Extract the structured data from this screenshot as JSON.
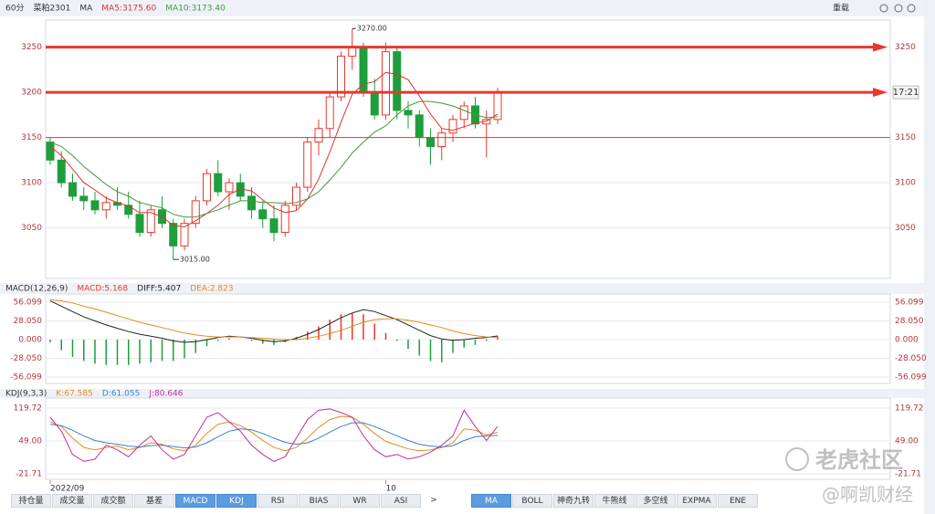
{
  "header": {
    "reload": "重载"
  },
  "chart_data": [
    {
      "type": "candlestick",
      "period": "60分",
      "symbol": "菜粕2301",
      "indicator": "MA",
      "categories": [
        "2022/09",
        null,
        null,
        null,
        null,
        null,
        null,
        null,
        null,
        null,
        null,
        null,
        null,
        null,
        null,
        null,
        null,
        null,
        null,
        null,
        null,
        null,
        null,
        null,
        null,
        null,
        null,
        null,
        null,
        null,
        "10",
        null,
        null,
        null,
        null,
        null,
        null,
        null,
        null,
        null,
        null
      ],
      "open": [
        3145,
        3125,
        3100,
        3085,
        3080,
        3070,
        3078,
        3075,
        3065,
        3045,
        3070,
        3055,
        3030,
        3055,
        3080,
        3110,
        3090,
        3100,
        3085,
        3070,
        3060,
        3045,
        3075,
        3095,
        3145,
        3160,
        3195,
        3240,
        3250,
        3200,
        3175,
        3245,
        3180,
        3175,
        3150,
        3140,
        3155,
        3170,
        3185,
        3165,
        3170
      ],
      "high": [
        3150,
        3135,
        3110,
        3095,
        3090,
        3085,
        3095,
        3090,
        3080,
        3075,
        3085,
        3060,
        3060,
        3085,
        3115,
        3125,
        3105,
        3110,
        3095,
        3080,
        3075,
        3080,
        3100,
        3150,
        3170,
        3200,
        3245,
        3270,
        3255,
        3215,
        3255,
        3250,
        3190,
        3180,
        3160,
        3160,
        3175,
        3190,
        3195,
        3180,
        3205
      ],
      "low": [
        3120,
        3095,
        3080,
        3070,
        3065,
        3060,
        3070,
        3060,
        3040,
        3040,
        3050,
        3015,
        3025,
        3050,
        3075,
        3085,
        3070,
        3080,
        3060,
        3050,
        3035,
        3040,
        3070,
        3090,
        3130,
        3150,
        3190,
        3225,
        3195,
        3170,
        3170,
        3170,
        3160,
        3140,
        3120,
        3125,
        3145,
        3160,
        3160,
        3128,
        3165
      ],
      "close": [
        3125,
        3100,
        3085,
        3080,
        3070,
        3078,
        3075,
        3065,
        3045,
        3070,
        3055,
        3030,
        3055,
        3080,
        3110,
        3090,
        3100,
        3085,
        3070,
        3060,
        3045,
        3075,
        3095,
        3145,
        3160,
        3195,
        3240,
        3250,
        3200,
        3175,
        3245,
        3180,
        3175,
        3150,
        3140,
        3155,
        3170,
        3185,
        3165,
        3170,
        3200
      ],
      "up_color": "#e8372f",
      "down_color": "#1f9e3c",
      "series": [
        {
          "name": "MA5:3175.60",
          "color": "#d9342b",
          "values": [
            3140,
            3130,
            3115,
            3100,
            3092,
            3083,
            3078,
            3074,
            3067,
            3067,
            3062,
            3053,
            3051,
            3058,
            3066,
            3075,
            3087,
            3093,
            3091,
            3081,
            3072,
            3067,
            3069,
            3082,
            3104,
            3134,
            3167,
            3198,
            3209,
            3212,
            3222,
            3220,
            3214,
            3196,
            3176,
            3160,
            3158,
            3162,
            3166,
            3168,
            3176
          ]
        },
        {
          "name": "MA10:3173.40",
          "color": "#3f9a3a",
          "values": [
            3145,
            3140,
            3130,
            3118,
            3108,
            3098,
            3090,
            3085,
            3078,
            3075,
            3072,
            3065,
            3062,
            3062,
            3066,
            3070,
            3075,
            3080,
            3080,
            3078,
            3078,
            3077,
            3078,
            3082,
            3090,
            3103,
            3117,
            3133,
            3145,
            3156,
            3163,
            3175,
            3185,
            3190,
            3190,
            3188,
            3185,
            3180,
            3175,
            3172,
            3173
          ]
        }
      ],
      "max_label": "3270.00",
      "min_label": "3015.00",
      "price_lines": [
        {
          "value": 3250,
          "arrow": true
        },
        {
          "value": 3200,
          "arrow": true
        },
        {
          "value": 3150,
          "arrow": false
        }
      ],
      "price_line_color": "#e8372f",
      "price_tag": "17:21",
      "ylim": [
        2994,
        3280
      ],
      "yticks": [
        3050,
        3100,
        3150,
        3200,
        3250
      ],
      "grid": true
    },
    {
      "type": "macd",
      "title": "MACD(12,26,9)",
      "series": [
        {
          "name": "MACD:5.168",
          "kind": "bar",
          "color": "#e8372f",
          "down_color": "#1f9e3c",
          "values": [
            -4,
            -16,
            -26,
            -32,
            -36,
            -38,
            -38,
            -38,
            -36,
            -34,
            -32,
            -32,
            -28,
            -20,
            -10,
            -2,
            2,
            0,
            -2,
            -6,
            -8,
            -4,
            4,
            12,
            20,
            30,
            38,
            40,
            38,
            24,
            10,
            -2,
            -14,
            -24,
            -32,
            -34,
            -20,
            -12,
            -8,
            -2,
            5.168
          ]
        },
        {
          "name": "DIFF:5.407",
          "kind": "line",
          "color": "#222222",
          "values": [
            58,
            50,
            42,
            34,
            28,
            22,
            17,
            12,
            8,
            5,
            2,
            -2,
            -4,
            -3,
            0,
            3,
            5,
            4,
            2,
            -1,
            -3,
            -2,
            2,
            8,
            15,
            24,
            33,
            40,
            45,
            42,
            36,
            30,
            22,
            14,
            6,
            1,
            -1,
            0,
            2,
            3,
            5.407
          ]
        },
        {
          "name": "DEA:2.823",
          "kind": "line",
          "color": "#e88a1a",
          "values": [
            60,
            58,
            55,
            50,
            46,
            41,
            36,
            31,
            26,
            22,
            18,
            14,
            10,
            7,
            5,
            4,
            4,
            4,
            3,
            2,
            1,
            0,
            0,
            2,
            5,
            9,
            14,
            20,
            26,
            30,
            31,
            31,
            29,
            26,
            22,
            18,
            13,
            9,
            6,
            4,
            2.823
          ]
        }
      ],
      "ylim": [
        -65.7,
        68.4
      ],
      "yticks": [
        -56.099,
        {
          "value": -28.05,
          "label": "-28.050"
        },
        {
          "value": 0,
          "label": "0.000"
        },
        {
          "value": 28.05,
          "label": "28.050"
        },
        56.099
      ],
      "grid": true
    },
    {
      "type": "kdj",
      "title": "KDJ(9,3,3)",
      "series": [
        {
          "name": "K:67.585",
          "kind": "line",
          "color": "#e88a1a",
          "values": [
            90,
            80,
            55,
            35,
            30,
            35,
            38,
            30,
            35,
            45,
            42,
            32,
            28,
            40,
            65,
            85,
            90,
            82,
            68,
            50,
            35,
            28,
            35,
            55,
            78,
            95,
            102,
            100,
            85,
            65,
            48,
            40,
            32,
            28,
            30,
            35,
            45,
            75,
            72,
            62,
            67.585
          ]
        },
        {
          "name": "D:61.055",
          "kind": "line",
          "color": "#3b7fd0",
          "values": [
            85,
            82,
            72,
            60,
            50,
            45,
            42,
            38,
            36,
            39,
            40,
            37,
            34,
            36,
            45,
            58,
            70,
            75,
            73,
            65,
            55,
            46,
            42,
            45,
            55,
            68,
            80,
            88,
            88,
            80,
            70,
            60,
            50,
            42,
            38,
            36,
            39,
            50,
            58,
            60,
            61.055
          ]
        },
        {
          "name": "J:80.646",
          "kind": "line",
          "color": "#c0309a",
          "values": [
            100,
            70,
            20,
            5,
            10,
            40,
            30,
            15,
            40,
            60,
            30,
            10,
            20,
            60,
            100,
            110,
            90,
            70,
            40,
            20,
            5,
            15,
            55,
            95,
            115,
            118,
            110,
            100,
            60,
            30,
            15,
            20,
            10,
            15,
            25,
            40,
            60,
            115,
            80,
            50,
            80.646
          ]
        }
      ],
      "ylim": [
        -33.5,
        141.3
      ],
      "yticks": [
        -21.71,
        {
          "value": 49,
          "label": "49.00"
        },
        119.72
      ],
      "grid": true
    }
  ],
  "tabs": [
    {
      "label": "持仓量",
      "active": false
    },
    {
      "label": "成交量",
      "active": false
    },
    {
      "label": "成交额",
      "active": false
    },
    {
      "label": "基差",
      "active": false
    },
    {
      "label": "MACD",
      "active": true
    },
    {
      "label": "KDJ",
      "active": true
    },
    {
      "label": "RSI",
      "active": false
    },
    {
      "label": "BIAS",
      "active": false
    },
    {
      "label": "WR",
      "active": false
    },
    {
      "label": "ASI",
      "active": false
    },
    {
      "label": ">",
      "active": false
    },
    {
      "label": "MA",
      "active": true
    },
    {
      "label": "BOLL",
      "active": false
    },
    {
      "label": "神奇九转",
      "active": false
    },
    {
      "label": "牛熊线",
      "active": false
    },
    {
      "label": "多空线",
      "active": false
    },
    {
      "label": "EXPMA",
      "active": false
    },
    {
      "label": "ENE",
      "active": false
    }
  ],
  "watermark": {
    "brand": "老虎社区",
    "author": "@啊凯财经"
  }
}
